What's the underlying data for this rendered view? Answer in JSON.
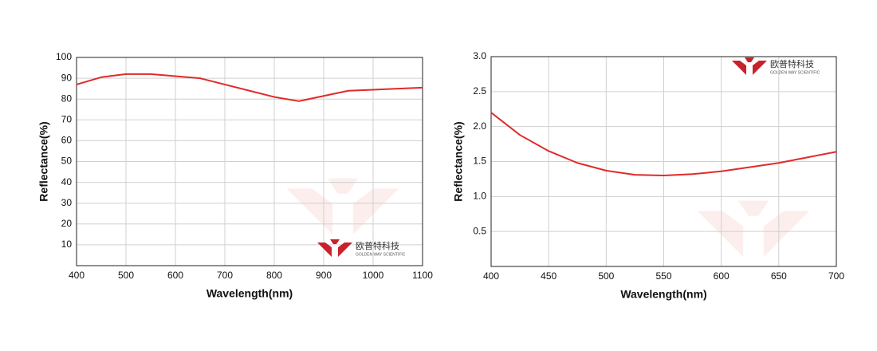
{
  "chart_data": [
    {
      "type": "line",
      "x_label": "Wavelength(nm)",
      "y_label": "Reflectance(%)",
      "xlim": [
        400,
        1100
      ],
      "xticks": [
        400,
        500,
        600,
        700,
        800,
        900,
        1000,
        1100
      ],
      "ylim": [
        0,
        100
      ],
      "yticks": [
        10,
        20,
        30,
        40,
        50,
        60,
        70,
        80,
        90,
        100
      ],
      "grid": true,
      "logo_text": "欧普特科技",
      "logo_subtext": "GOLDEN WAY SCIENTIFIC",
      "series": [
        {
          "color": "#e02a2a",
          "x": [
            400,
            450,
            500,
            550,
            600,
            650,
            700,
            750,
            800,
            850,
            900,
            950,
            1000,
            1050,
            1100
          ],
          "values": [
            87,
            90.5,
            92,
            92,
            91,
            90,
            87,
            84,
            81,
            79,
            81.5,
            84,
            84.5,
            85,
            85.5
          ]
        }
      ]
    },
    {
      "type": "line",
      "x_label": "Wavelength(nm)",
      "y_label": "Reflectance(%)",
      "xlim": [
        400,
        700
      ],
      "xticks": [
        400,
        450,
        500,
        550,
        600,
        650,
        700
      ],
      "ylim": [
        0,
        3
      ],
      "yticks": [
        0.5,
        {
          "value": 1,
          "label": "1.0"
        },
        1.5,
        {
          "value": 2,
          "label": "2.0"
        },
        2.5,
        {
          "value": 3,
          "label": "3.0"
        }
      ],
      "grid": true,
      "logo_text": "欧普特科技",
      "logo_subtext": "GOLDEN WAY SCIENTIFIC",
      "series": [
        {
          "color": "#e02a2a",
          "x": [
            400,
            425,
            450,
            475,
            500,
            525,
            550,
            575,
            600,
            625,
            650,
            675,
            700
          ],
          "values": [
            2.2,
            1.88,
            1.65,
            1.48,
            1.37,
            1.31,
            1.3,
            1.32,
            1.36,
            1.42,
            1.48,
            1.56,
            1.64
          ]
        }
      ]
    }
  ]
}
